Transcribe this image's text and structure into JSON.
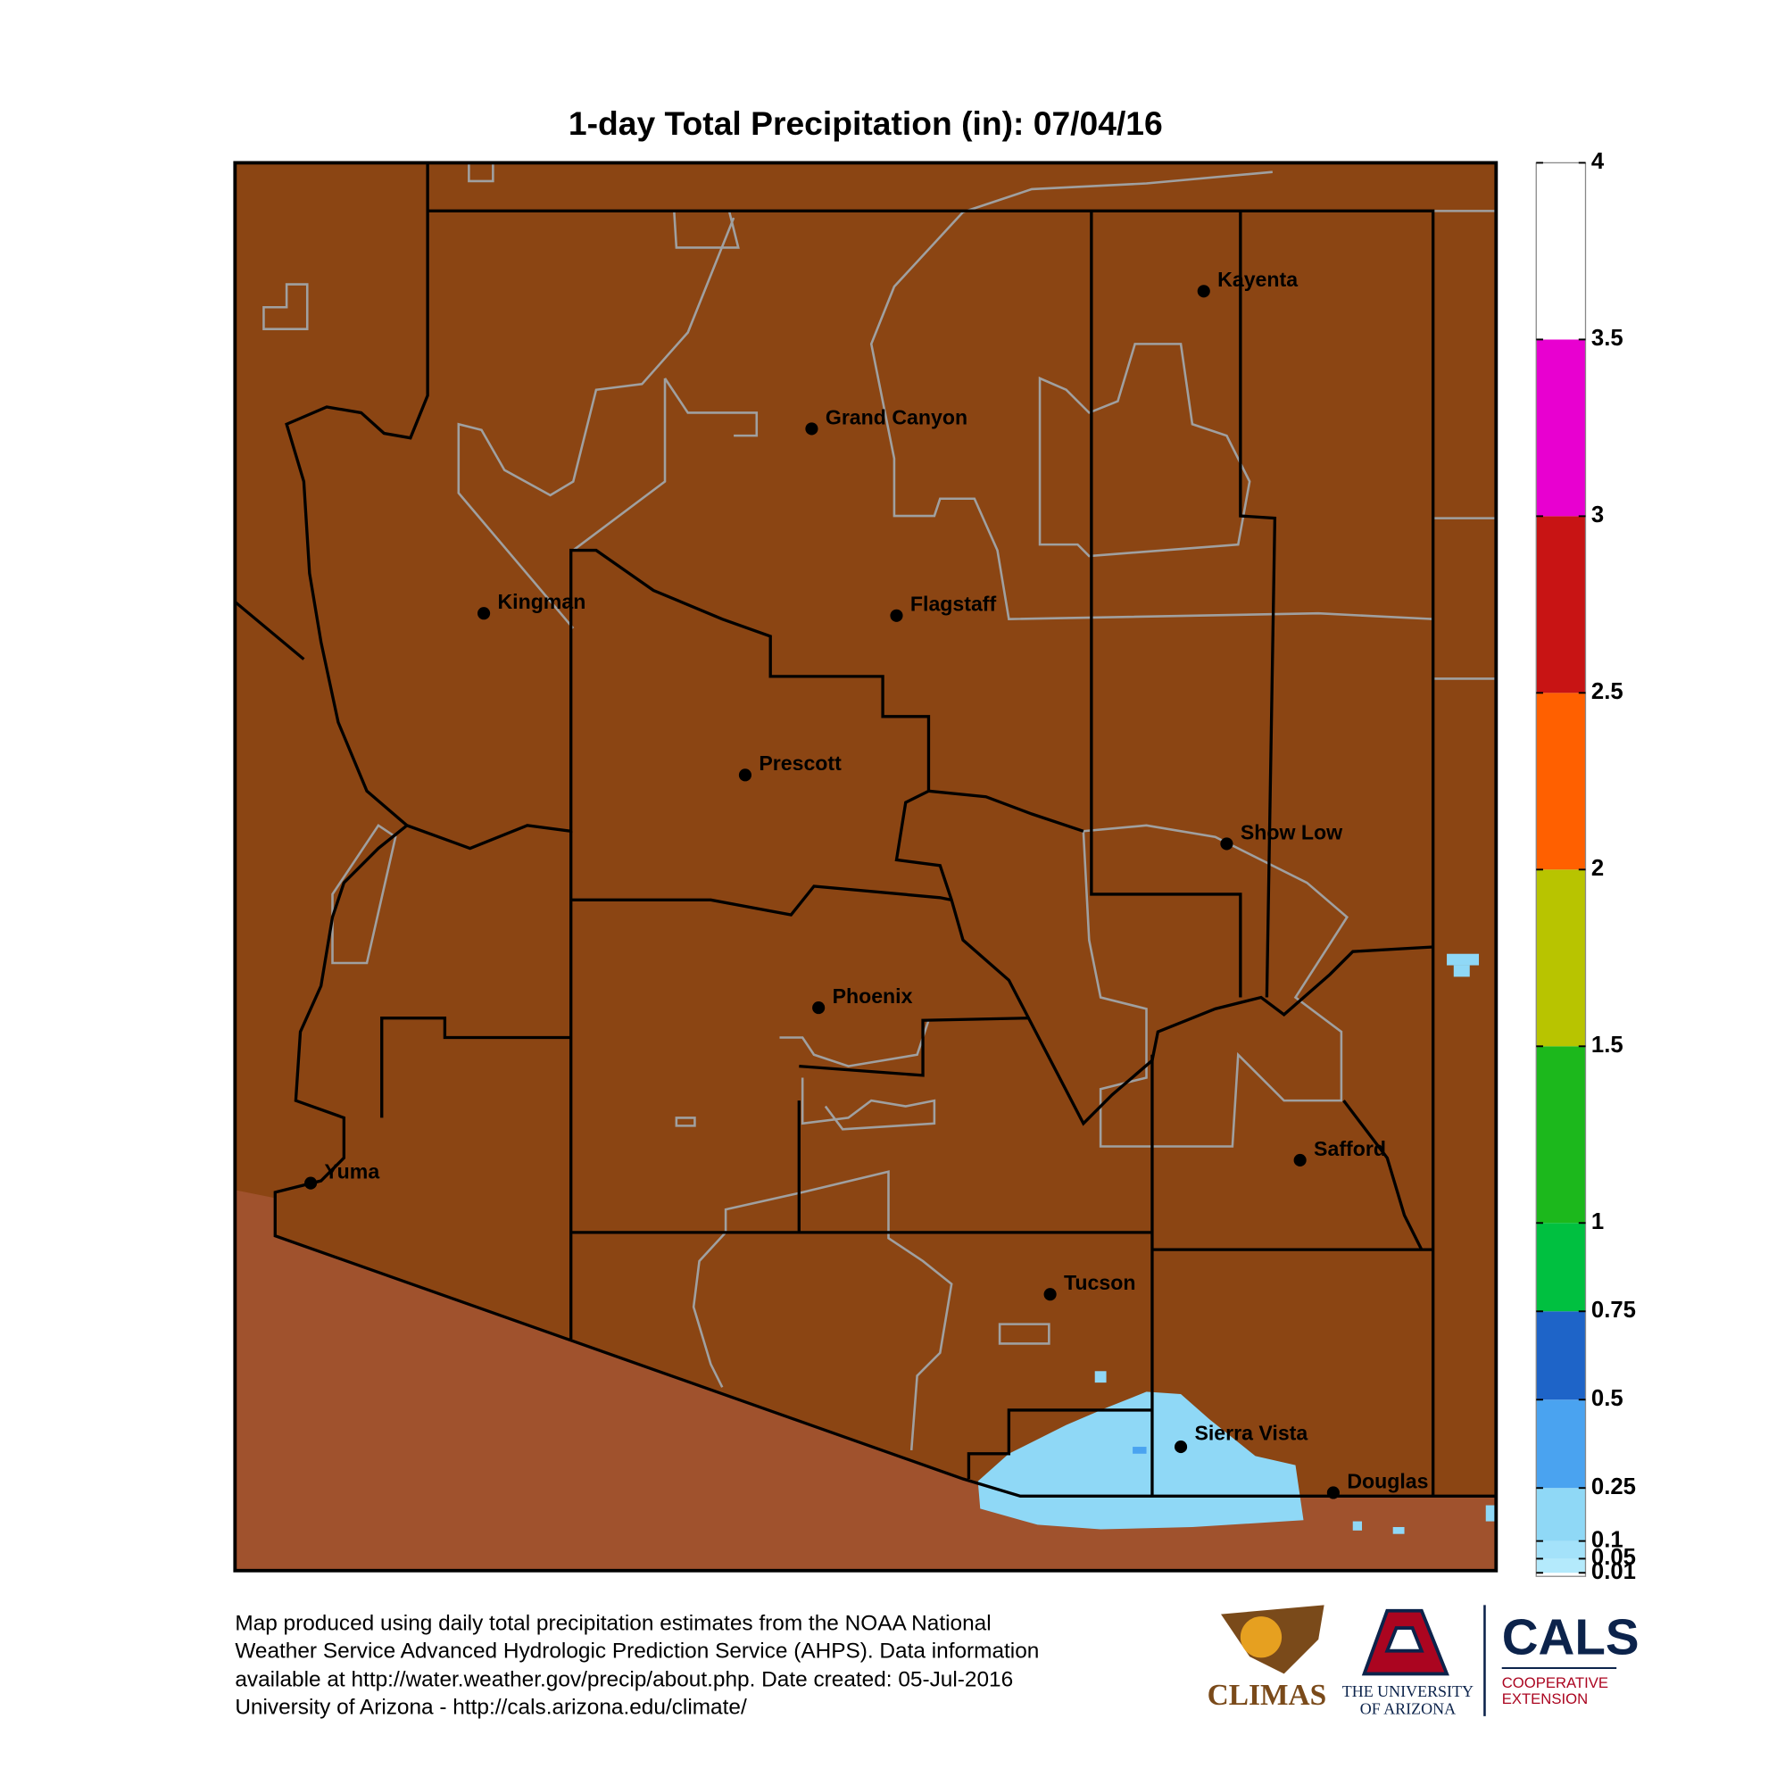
{
  "title": "1-day Total Precipitation (in): 07/04/16",
  "cities": [
    "Kayenta",
    "Grand Canyon",
    "Kingman",
    "Flagstaff",
    "Prescott",
    "Show Low",
    "Phoenix",
    "Safford",
    "Yuma",
    "Tucson",
    "Sierra Vista",
    "Douglas"
  ],
  "legend": {
    "lim": [
      0,
      4
    ],
    "ticks": [
      0.01,
      0.05,
      0.1,
      0.25,
      0.5,
      0.75,
      1,
      1.5,
      2,
      2.5,
      3,
      3.5,
      4
    ],
    "colors": [
      "#b4eafc",
      "#a4e2fa",
      "#8fd8f6",
      "#4aa3f0",
      "#1e64c8",
      "#00c040",
      "#1cb81c",
      "#b8c400",
      "#ff6000",
      "#c81414",
      "#e800d0",
      "#ffffff"
    ]
  },
  "footer": [
    "Map produced using daily total precipitation estimates from the NOAA National",
    "Weather Service Advanced Hydrologic Prediction Service (AHPS). Data information",
    "available at http://water.weather.gov/precip/about.php. Date created: 05-Jul-2016",
    "University of Arizona - http://cals.arizona.edu/climate/"
  ],
  "logos": {
    "climas": "CLIMAS",
    "ua_line1": "THE UNIVERSITY",
    "ua_line2": "OF ARIZONA",
    "cals": "CALS",
    "cals_line1": "COOPERATIVE",
    "cals_line2": "EXTENSION"
  }
}
